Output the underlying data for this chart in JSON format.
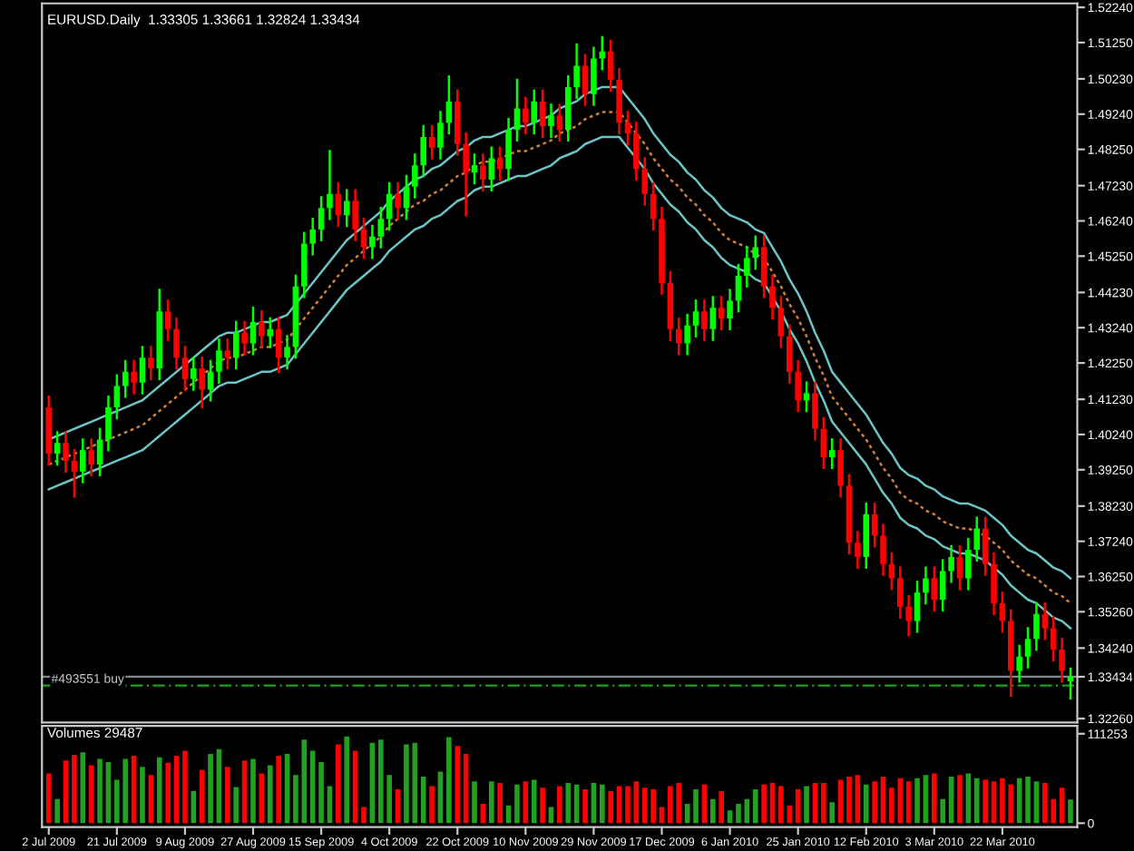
{
  "chart_data": [
    {
      "type": "candlestick",
      "title": "EURUSD.Daily  1.33305 1.33661 1.32824 1.33434",
      "categories": [
        null,
        null,
        null,
        null,
        null,
        null,
        null,
        null,
        null,
        null,
        null,
        null,
        null,
        null,
        null,
        null,
        null,
        null,
        null,
        null,
        null,
        null,
        null,
        null,
        null,
        null,
        null,
        null,
        null,
        null,
        null,
        null,
        null,
        null,
        null,
        null,
        null,
        null,
        null,
        null,
        null,
        null,
        null,
        null,
        null,
        null,
        null,
        null,
        null,
        null,
        null,
        null,
        null,
        null,
        null,
        null,
        null,
        null,
        null,
        null,
        null,
        null,
        null,
        null,
        null,
        null,
        null,
        null,
        null,
        null,
        null,
        null,
        null,
        null,
        null,
        null,
        null,
        null,
        null,
        null,
        null,
        null,
        null,
        null,
        null,
        null,
        null,
        null,
        null,
        null,
        null,
        null,
        null,
        null,
        null,
        null,
        null,
        null,
        null,
        null,
        null,
        null,
        null,
        null,
        null,
        null,
        null,
        null,
        null,
        null,
        null,
        null,
        null,
        null,
        null,
        null,
        null,
        null,
        null,
        null,
        null
      ],
      "ohlc": [
        [
          1.41,
          1.413,
          1.394,
          1.397
        ],
        [
          1.397,
          1.403,
          1.394,
          1.4
        ],
        [
          1.4,
          1.403,
          1.392,
          1.395
        ],
        [
          1.395,
          1.398,
          1.385,
          1.392
        ],
        [
          1.392,
          1.401,
          1.389,
          1.398
        ],
        [
          1.398,
          1.401,
          1.391,
          1.394
        ],
        [
          1.394,
          1.404,
          1.391,
          1.401
        ],
        [
          1.401,
          1.413,
          1.398,
          1.41
        ],
        [
          1.41,
          1.419,
          1.407,
          1.416
        ],
        [
          1.416,
          1.423,
          1.413,
          1.42
        ],
        [
          1.42,
          1.423,
          1.414,
          1.417
        ],
        [
          1.417,
          1.427,
          1.414,
          1.424
        ],
        [
          1.424,
          1.427,
          1.418,
          1.421
        ],
        [
          1.421,
          1.443,
          1.418,
          1.437
        ],
        [
          1.437,
          1.44,
          1.429,
          1.432
        ],
        [
          1.432,
          1.435,
          1.421,
          1.424
        ],
        [
          1.424,
          1.427,
          1.415,
          1.418
        ],
        [
          1.418,
          1.424,
          1.415,
          1.421
        ],
        [
          1.421,
          1.424,
          1.41,
          1.415
        ],
        [
          1.415,
          1.423,
          1.412,
          1.42
        ],
        [
          1.42,
          1.429,
          1.417,
          1.426
        ],
        [
          1.426,
          1.429,
          1.421,
          1.424
        ],
        [
          1.424,
          1.434,
          1.421,
          1.431
        ],
        [
          1.431,
          1.434,
          1.425,
          1.428
        ],
        [
          1.428,
          1.438,
          1.425,
          1.434
        ],
        [
          1.434,
          1.437,
          1.427,
          1.43
        ],
        [
          1.43,
          1.435,
          1.427,
          1.432
        ],
        [
          1.432,
          1.435,
          1.42,
          1.424
        ],
        [
          1.424,
          1.43,
          1.421,
          1.427
        ],
        [
          1.427,
          1.447,
          1.424,
          1.444
        ],
        [
          1.444,
          1.459,
          1.441,
          1.456
        ],
        [
          1.456,
          1.463,
          1.453,
          1.46
        ],
        [
          1.46,
          1.469,
          1.457,
          1.466
        ],
        [
          1.466,
          1.482,
          1.463,
          1.47
        ],
        [
          1.47,
          1.473,
          1.461,
          1.464
        ],
        [
          1.464,
          1.471,
          1.461,
          1.468
        ],
        [
          1.468,
          1.471,
          1.457,
          1.46
        ],
        [
          1.46,
          1.463,
          1.452,
          1.455
        ],
        [
          1.455,
          1.461,
          1.452,
          1.458
        ],
        [
          1.458,
          1.466,
          1.455,
          1.463
        ],
        [
          1.463,
          1.473,
          1.46,
          1.47
        ],
        [
          1.47,
          1.473,
          1.463,
          1.466
        ],
        [
          1.466,
          1.475,
          1.463,
          1.472
        ],
        [
          1.472,
          1.481,
          1.469,
          1.478
        ],
        [
          1.478,
          1.489,
          1.475,
          1.486
        ],
        [
          1.486,
          1.489,
          1.48,
          1.483
        ],
        [
          1.483,
          1.493,
          1.48,
          1.49
        ],
        [
          1.49,
          1.503,
          1.487,
          1.496
        ],
        [
          1.496,
          1.499,
          1.481,
          1.484
        ],
        [
          1.484,
          1.487,
          1.464,
          1.476
        ],
        [
          1.476,
          1.481,
          1.473,
          1.478
        ],
        [
          1.478,
          1.481,
          1.471,
          1.474
        ],
        [
          1.474,
          1.483,
          1.471,
          1.48
        ],
        [
          1.48,
          1.483,
          1.474,
          1.477
        ],
        [
          1.477,
          1.491,
          1.474,
          1.488
        ],
        [
          1.488,
          1.502,
          1.485,
          1.494
        ],
        [
          1.494,
          1.497,
          1.487,
          1.49
        ],
        [
          1.49,
          1.499,
          1.487,
          1.496
        ],
        [
          1.496,
          1.499,
          1.486,
          1.489
        ],
        [
          1.489,
          1.495,
          1.486,
          1.492
        ],
        [
          1.492,
          1.495,
          1.485,
          1.488
        ],
        [
          1.488,
          1.503,
          1.485,
          1.5
        ],
        [
          1.5,
          1.512,
          1.497,
          1.506
        ],
        [
          1.506,
          1.509,
          1.495,
          1.498
        ],
        [
          1.498,
          1.511,
          1.495,
          1.508
        ],
        [
          1.508,
          1.514,
          1.505,
          1.51
        ],
        [
          1.51,
          1.513,
          1.499,
          1.502
        ],
        [
          1.502,
          1.505,
          1.487,
          1.49
        ],
        [
          1.49,
          1.493,
          1.484,
          1.487
        ],
        [
          1.487,
          1.49,
          1.474,
          1.477
        ],
        [
          1.477,
          1.48,
          1.467,
          1.47
        ],
        [
          1.47,
          1.473,
          1.46,
          1.463
        ],
        [
          1.463,
          1.466,
          1.442,
          1.445
        ],
        [
          1.445,
          1.448,
          1.429,
          1.432
        ],
        [
          1.432,
          1.435,
          1.425,
          1.428
        ],
        [
          1.428,
          1.436,
          1.425,
          1.433
        ],
        [
          1.433,
          1.44,
          1.43,
          1.437
        ],
        [
          1.437,
          1.44,
          1.429,
          1.432
        ],
        [
          1.432,
          1.441,
          1.429,
          1.438
        ],
        [
          1.438,
          1.441,
          1.432,
          1.435
        ],
        [
          1.435,
          1.443,
          1.432,
          1.44
        ],
        [
          1.44,
          1.45,
          1.437,
          1.447
        ],
        [
          1.447,
          1.455,
          1.444,
          1.452
        ],
        [
          1.452,
          1.458,
          1.449,
          1.455
        ],
        [
          1.455,
          1.458,
          1.441,
          1.444
        ],
        [
          1.444,
          1.447,
          1.435,
          1.438
        ],
        [
          1.438,
          1.441,
          1.427,
          1.43
        ],
        [
          1.43,
          1.433,
          1.417,
          1.42
        ],
        [
          1.42,
          1.423,
          1.409,
          1.412
        ],
        [
          1.412,
          1.417,
          1.409,
          1.414
        ],
        [
          1.414,
          1.417,
          1.401,
          1.404
        ],
        [
          1.404,
          1.407,
          1.393,
          1.396
        ],
        [
          1.396,
          1.401,
          1.393,
          1.398
        ],
        [
          1.398,
          1.401,
          1.385,
          1.388
        ],
        [
          1.388,
          1.391,
          1.369,
          1.372
        ],
        [
          1.372,
          1.375,
          1.365,
          1.368
        ],
        [
          1.368,
          1.383,
          1.365,
          1.38
        ],
        [
          1.38,
          1.383,
          1.371,
          1.374
        ],
        [
          1.374,
          1.377,
          1.363,
          1.366
        ],
        [
          1.366,
          1.369,
          1.359,
          1.362
        ],
        [
          1.362,
          1.365,
          1.351,
          1.354
        ],
        [
          1.354,
          1.357,
          1.346,
          1.35
        ],
        [
          1.35,
          1.361,
          1.347,
          1.358
        ],
        [
          1.358,
          1.365,
          1.355,
          1.362
        ],
        [
          1.362,
          1.365,
          1.353,
          1.356
        ],
        [
          1.356,
          1.367,
          1.353,
          1.364
        ],
        [
          1.364,
          1.371,
          1.361,
          1.368
        ],
        [
          1.368,
          1.371,
          1.359,
          1.362
        ],
        [
          1.362,
          1.373,
          1.359,
          1.37
        ],
        [
          1.37,
          1.379,
          1.367,
          1.376
        ],
        [
          1.376,
          1.379,
          1.363,
          1.366
        ],
        [
          1.366,
          1.369,
          1.352,
          1.355
        ],
        [
          1.355,
          1.358,
          1.347,
          1.35
        ],
        [
          1.35,
          1.353,
          1.329,
          1.336
        ],
        [
          1.336,
          1.343,
          1.333,
          1.34
        ],
        [
          1.34,
          1.348,
          1.337,
          1.345
        ],
        [
          1.345,
          1.355,
          1.342,
          1.352
        ],
        [
          1.352,
          1.355,
          1.345,
          1.348
        ],
        [
          1.348,
          1.351,
          1.339,
          1.342
        ],
        [
          1.342,
          1.345,
          1.333,
          1.336
        ],
        [
          1.33305,
          1.33661,
          1.32824,
          1.33434
        ]
      ],
      "colors": [
        "#ff0000",
        "#00ff00",
        "#ff0000",
        "#ff0000",
        "#00ff00",
        "#ff0000",
        "#00ff00",
        "#00ff00",
        "#00ff00",
        "#00ff00",
        "#ff0000",
        "#00ff00",
        "#ff0000",
        "#00ff00",
        "#ff0000",
        "#ff0000",
        "#ff0000",
        "#00ff00",
        "#ff0000",
        "#00ff00",
        "#00ff00",
        "#ff0000",
        "#00ff00",
        "#ff0000",
        "#00ff00",
        "#ff0000",
        "#00ff00",
        "#ff0000",
        "#00ff00",
        "#00ff00",
        "#00ff00",
        "#00ff00",
        "#00ff00",
        "#00ff00",
        "#ff0000",
        "#00ff00",
        "#ff0000",
        "#ff0000",
        "#00ff00",
        "#00ff00",
        "#00ff00",
        "#ff0000",
        "#00ff00",
        "#00ff00",
        "#00ff00",
        "#ff0000",
        "#00ff00",
        "#00ff00",
        "#ff0000",
        "#ff0000",
        "#00ff00",
        "#ff0000",
        "#00ff00",
        "#ff0000",
        "#00ff00",
        "#00ff00",
        "#ff0000",
        "#00ff00",
        "#ff0000",
        "#00ff00",
        "#ff0000",
        "#00ff00",
        "#00ff00",
        "#ff0000",
        "#00ff00",
        "#00ff00",
        "#ff0000",
        "#ff0000",
        "#ff0000",
        "#ff0000",
        "#ff0000",
        "#ff0000",
        "#ff0000",
        "#ff0000",
        "#ff0000",
        "#00ff00",
        "#00ff00",
        "#ff0000",
        "#00ff00",
        "#ff0000",
        "#00ff00",
        "#00ff00",
        "#00ff00",
        "#00ff00",
        "#ff0000",
        "#ff0000",
        "#ff0000",
        "#ff0000",
        "#ff0000",
        "#00ff00",
        "#ff0000",
        "#ff0000",
        "#00ff00",
        "#ff0000",
        "#ff0000",
        "#ff0000",
        "#00ff00",
        "#ff0000",
        "#ff0000",
        "#ff0000",
        "#ff0000",
        "#ff0000",
        "#00ff00",
        "#00ff00",
        "#ff0000",
        "#00ff00",
        "#00ff00",
        "#ff0000",
        "#00ff00",
        "#00ff00",
        "#ff0000",
        "#ff0000",
        "#ff0000",
        "#ff0000",
        "#00ff00",
        "#00ff00",
        "#00ff00",
        "#ff0000",
        "#ff0000",
        "#ff0000",
        "#00ff00"
      ],
      "series": [
        {
          "type": "line",
          "color": "#6cc4c4",
          "line_style": "solid",
          "values": [
            1.401,
            1.402,
            1.403,
            1.404,
            1.405,
            1.406,
            1.407,
            1.408,
            1.409,
            1.41,
            1.411,
            1.412,
            1.414,
            1.416,
            1.418,
            1.42,
            1.422,
            1.424,
            1.426,
            1.428,
            1.43,
            1.431,
            1.431,
            1.432,
            1.433,
            1.434,
            1.434,
            1.435,
            1.436,
            1.439,
            1.442,
            1.445,
            1.448,
            1.451,
            1.454,
            1.457,
            1.459,
            1.461,
            1.463,
            1.465,
            1.468,
            1.47,
            1.472,
            1.474,
            1.475,
            1.477,
            1.478,
            1.48,
            1.482,
            1.483,
            1.485,
            1.486,
            1.486,
            1.487,
            1.488,
            1.489,
            1.489,
            1.49,
            1.491,
            1.492,
            1.494,
            1.495,
            1.496,
            1.498,
            1.499,
            1.5,
            1.5,
            1.5,
            1.497,
            1.494,
            1.491,
            1.487,
            1.484,
            1.481,
            1.479,
            1.476,
            1.474,
            1.471,
            1.469,
            1.466,
            1.464,
            1.463,
            1.462,
            1.46,
            1.459,
            1.455,
            1.451,
            1.446,
            1.442,
            1.437,
            1.431,
            1.426,
            1.42,
            1.417,
            1.414,
            1.411,
            1.408,
            1.404,
            1.4,
            1.397,
            1.393,
            1.391,
            1.39,
            1.388,
            1.387,
            1.385,
            1.384,
            1.383,
            1.383,
            1.382,
            1.381,
            1.379,
            1.377,
            1.374,
            1.372,
            1.37,
            1.369,
            1.367,
            1.365,
            1.364,
            1.362
          ]
        },
        {
          "type": "line",
          "color": "#d0803c",
          "line_style": "dotted",
          "values": [
            1.394,
            1.395,
            1.396,
            1.397,
            1.398,
            1.399,
            1.4,
            1.401,
            1.402,
            1.403,
            1.404,
            1.405,
            1.407,
            1.409,
            1.411,
            1.413,
            1.415,
            1.417,
            1.419,
            1.421,
            1.423,
            1.424,
            1.424,
            1.425,
            1.426,
            1.427,
            1.427,
            1.428,
            1.429,
            1.432,
            1.435,
            1.438,
            1.441,
            1.444,
            1.447,
            1.45,
            1.452,
            1.454,
            1.456,
            1.458,
            1.461,
            1.463,
            1.465,
            1.467,
            1.468,
            1.47,
            1.471,
            1.473,
            1.475,
            1.476,
            1.478,
            1.479,
            1.479,
            1.48,
            1.481,
            1.482,
            1.482,
            1.483,
            1.484,
            1.485,
            1.487,
            1.488,
            1.489,
            1.491,
            1.492,
            1.493,
            1.493,
            1.493,
            1.49,
            1.487,
            1.484,
            1.48,
            1.477,
            1.474,
            1.472,
            1.469,
            1.467,
            1.464,
            1.462,
            1.459,
            1.457,
            1.456,
            1.455,
            1.453,
            1.452,
            1.448,
            1.444,
            1.439,
            1.435,
            1.43,
            1.424,
            1.419,
            1.413,
            1.41,
            1.407,
            1.404,
            1.401,
            1.397,
            1.393,
            1.39,
            1.386,
            1.384,
            1.383,
            1.381,
            1.38,
            1.378,
            1.377,
            1.376,
            1.376,
            1.375,
            1.374,
            1.372,
            1.37,
            1.367,
            1.365,
            1.363,
            1.362,
            1.36,
            1.358,
            1.357,
            1.355
          ]
        },
        {
          "type": "line",
          "color": "#6cc4c4",
          "line_style": "solid",
          "values": [
            1.387,
            1.388,
            1.389,
            1.39,
            1.391,
            1.392,
            1.393,
            1.394,
            1.395,
            1.396,
            1.397,
            1.398,
            1.4,
            1.402,
            1.404,
            1.406,
            1.408,
            1.41,
            1.412,
            1.414,
            1.416,
            1.417,
            1.417,
            1.418,
            1.419,
            1.42,
            1.42,
            1.421,
            1.422,
            1.425,
            1.428,
            1.431,
            1.434,
            1.437,
            1.44,
            1.443,
            1.445,
            1.447,
            1.449,
            1.451,
            1.454,
            1.456,
            1.458,
            1.46,
            1.461,
            1.463,
            1.464,
            1.466,
            1.468,
            1.469,
            1.471,
            1.472,
            1.472,
            1.473,
            1.474,
            1.475,
            1.475,
            1.476,
            1.477,
            1.478,
            1.48,
            1.481,
            1.482,
            1.484,
            1.485,
            1.486,
            1.486,
            1.486,
            1.483,
            1.48,
            1.477,
            1.473,
            1.47,
            1.467,
            1.465,
            1.462,
            1.46,
            1.457,
            1.455,
            1.452,
            1.45,
            1.449,
            1.448,
            1.446,
            1.445,
            1.441,
            1.437,
            1.432,
            1.428,
            1.423,
            1.417,
            1.412,
            1.406,
            1.403,
            1.4,
            1.397,
            1.394,
            1.39,
            1.386,
            1.383,
            1.379,
            1.377,
            1.376,
            1.374,
            1.373,
            1.371,
            1.37,
            1.369,
            1.369,
            1.368,
            1.367,
            1.365,
            1.363,
            1.36,
            1.358,
            1.356,
            1.355,
            1.353,
            1.351,
            1.35,
            1.348
          ]
        }
      ],
      "ylim": [
        1.3215,
        1.5235
      ],
      "yticks": [
        {
          "value": 1.3226,
          "label": "1.32260"
        },
        {
          "value": 1.33434,
          "label": "1.33434"
        },
        {
          "value": 1.3424,
          "label": "1.34240"
        },
        {
          "value": 1.3526,
          "label": "1.35260"
        },
        {
          "value": 1.3625,
          "label": "1.36250"
        },
        {
          "value": 1.3724,
          "label": "1.37240"
        },
        {
          "value": 1.3823,
          "label": "1.38230"
        },
        {
          "value": 1.3925,
          "label": "1.39250"
        },
        {
          "value": 1.4024,
          "label": "1.40240"
        },
        {
          "value": 1.4123,
          "label": "1.41230"
        },
        {
          "value": 1.4225,
          "label": "1.42250"
        },
        {
          "value": 1.4324,
          "label": "1.43240"
        },
        {
          "value": 1.4423,
          "label": "1.44230"
        },
        {
          "value": 1.4525,
          "label": "1.45250"
        },
        {
          "value": 1.4624,
          "label": "1.46240"
        },
        {
          "value": 1.4723,
          "label": "1.47230"
        },
        {
          "value": 1.4825,
          "label": "1.48250"
        },
        {
          "value": 1.4924,
          "label": "1.49240"
        },
        {
          "value": 1.5023,
          "label": "1.50230"
        },
        {
          "value": 1.5125,
          "label": "1.51250"
        },
        {
          "value": 1.5224,
          "label": "1.52240"
        }
      ],
      "ref_lines": [
        {
          "axis": "y",
          "value": 1.33434,
          "color": "#7a8898",
          "line_style": "solid"
        },
        {
          "axis": "y",
          "value": 1.3319,
          "label": "#493551 buy",
          "color": "#1fa01f",
          "line_style": "dashed"
        }
      ]
    },
    {
      "type": "bar",
      "title": "Volumes 29487",
      "categories": [
        "2 Jul 2009",
        null,
        null,
        null,
        null,
        null,
        null,
        null,
        "21 Jul 2009",
        null,
        null,
        null,
        null,
        null,
        null,
        null,
        "9 Aug 2009",
        null,
        null,
        null,
        null,
        null,
        null,
        null,
        "27 Aug 2009",
        null,
        null,
        null,
        null,
        null,
        null,
        null,
        "15 Sep 2009",
        null,
        null,
        null,
        null,
        null,
        null,
        null,
        "4 Oct 2009",
        null,
        null,
        null,
        null,
        null,
        null,
        null,
        "22 Oct 2009",
        null,
        null,
        null,
        null,
        null,
        null,
        null,
        "10 Nov 2009",
        null,
        null,
        null,
        null,
        null,
        null,
        null,
        "29 Nov 2009",
        null,
        null,
        null,
        null,
        null,
        null,
        null,
        "17 Dec 2009",
        null,
        null,
        null,
        null,
        null,
        null,
        null,
        "6 Jan 2010",
        null,
        null,
        null,
        null,
        null,
        null,
        null,
        "25 Jan 2010",
        null,
        null,
        null,
        null,
        null,
        null,
        null,
        "12 Feb 2010",
        null,
        null,
        null,
        null,
        null,
        null,
        null,
        "3 Mar 2010",
        null,
        null,
        null,
        null,
        null,
        null,
        null,
        "22 Mar 2010",
        null,
        null,
        null,
        null,
        null,
        null,
        null,
        null
      ],
      "values": [
        62000,
        30000,
        78000,
        85000,
        88000,
        72000,
        80000,
        76000,
        54000,
        80000,
        84000,
        70000,
        60000,
        82000,
        75000,
        84000,
        90000,
        40000,
        66000,
        86000,
        92000,
        70000,
        45000,
        78000,
        80000,
        62000,
        72000,
        84000,
        86000,
        60000,
        104000,
        90000,
        76000,
        46000,
        98000,
        108000,
        90000,
        20000,
        100000,
        104000,
        60000,
        42000,
        98000,
        100000,
        58000,
        46000,
        64000,
        107000,
        96000,
        86000,
        52000,
        24000,
        52000,
        50000,
        22000,
        48000,
        52000,
        54000,
        44000,
        20000,
        46000,
        50000,
        48000,
        42000,
        50000,
        48000,
        40000,
        46000,
        46000,
        52000,
        44000,
        42000,
        20000,
        46000,
        50000,
        24000,
        42000,
        48000,
        30000,
        40000,
        16000,
        24000,
        30000,
        42000,
        48000,
        50000,
        46000,
        22000,
        42000,
        46000,
        50000,
        50000,
        26000,
        54000,
        58000,
        60000,
        48000,
        52000,
        58000,
        44000,
        56000,
        52000,
        56000,
        60000,
        62000,
        30000,
        58000,
        60000,
        62000,
        56000,
        54000,
        52000,
        56000,
        48000,
        56000,
        58000,
        52000,
        50000,
        30000,
        44000,
        29487
      ],
      "colors": [
        "#ff0000",
        "#22a022",
        "#ff0000",
        "#ff0000",
        "#22a022",
        "#ff0000",
        "#22a022",
        "#22a022",
        "#22a022",
        "#22a022",
        "#ff0000",
        "#22a022",
        "#ff0000",
        "#22a022",
        "#ff0000",
        "#ff0000",
        "#ff0000",
        "#22a022",
        "#ff0000",
        "#22a022",
        "#22a022",
        "#ff0000",
        "#22a022",
        "#ff0000",
        "#22a022",
        "#ff0000",
        "#22a022",
        "#ff0000",
        "#22a022",
        "#22a022",
        "#22a022",
        "#22a022",
        "#22a022",
        "#22a022",
        "#ff0000",
        "#22a022",
        "#ff0000",
        "#ff0000",
        "#22a022",
        "#22a022",
        "#22a022",
        "#ff0000",
        "#22a022",
        "#22a022",
        "#22a022",
        "#ff0000",
        "#22a022",
        "#22a022",
        "#ff0000",
        "#ff0000",
        "#22a022",
        "#ff0000",
        "#22a022",
        "#ff0000",
        "#22a022",
        "#22a022",
        "#ff0000",
        "#22a022",
        "#ff0000",
        "#22a022",
        "#ff0000",
        "#22a022",
        "#22a022",
        "#ff0000",
        "#22a022",
        "#22a022",
        "#ff0000",
        "#ff0000",
        "#ff0000",
        "#ff0000",
        "#ff0000",
        "#ff0000",
        "#ff0000",
        "#ff0000",
        "#ff0000",
        "#22a022",
        "#22a022",
        "#ff0000",
        "#22a022",
        "#ff0000",
        "#22a022",
        "#22a022",
        "#22a022",
        "#22a022",
        "#ff0000",
        "#ff0000",
        "#ff0000",
        "#ff0000",
        "#ff0000",
        "#22a022",
        "#ff0000",
        "#ff0000",
        "#22a022",
        "#ff0000",
        "#ff0000",
        "#ff0000",
        "#22a022",
        "#ff0000",
        "#ff0000",
        "#ff0000",
        "#ff0000",
        "#ff0000",
        "#22a022",
        "#22a022",
        "#ff0000",
        "#22a022",
        "#22a022",
        "#ff0000",
        "#22a022",
        "#22a022",
        "#ff0000",
        "#ff0000",
        "#ff0000",
        "#ff0000",
        "#22a022",
        "#22a022",
        "#22a022",
        "#ff0000",
        "#ff0000",
        "#ff0000",
        "#22a022"
      ],
      "ylim": [
        -5000,
        121000
      ],
      "yticks": [
        0,
        111253
      ]
    }
  ]
}
